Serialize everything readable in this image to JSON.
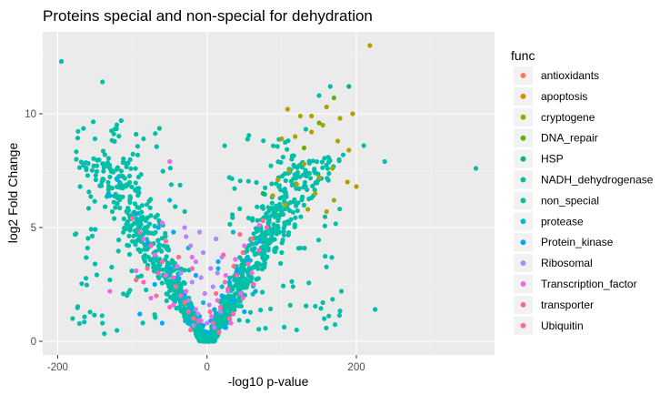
{
  "chart_data": {
    "type": "scatter",
    "title": "Proteins special and non-special for dehydration",
    "xlabel": "-log10 p-value",
    "ylabel": "log2 Fold Change",
    "xlim": [
      -220,
      385
    ],
    "ylim": [
      -0.6,
      13.6
    ],
    "x_ticks": [
      -200,
      0,
      200
    ],
    "y_ticks": [
      0,
      5,
      10
    ],
    "x_minor_ticks": [
      -100,
      100,
      300
    ],
    "y_minor_ticks": [
      2.5,
      7.5,
      12.5
    ],
    "grid": true,
    "background": "#ebebeb",
    "grid_major_color": "#ffffff",
    "legend_position": "right",
    "legend_title": "func",
    "series": [
      {
        "name": "antioxidants",
        "color": "#F8766D",
        "points": []
      },
      {
        "name": "apoptosis",
        "color": "#DB8E00",
        "points": []
      },
      {
        "name": "cryptogene",
        "color": "#AEA200",
        "points": [
          [
            218,
            13.0
          ],
          [
            108,
            10.2
          ],
          [
            125,
            9.9
          ],
          [
            140,
            9.9
          ],
          [
            160,
            10.3
          ],
          [
            178,
            9.8
          ],
          [
            195,
            10.0
          ],
          [
            100,
            8.9
          ],
          [
            118,
            9.0
          ],
          [
            140,
            9.2
          ],
          [
            155,
            9.5
          ],
          [
            175,
            8.8
          ],
          [
            190,
            8.4
          ],
          [
            110,
            7.5
          ],
          [
            130,
            7.8
          ],
          [
            150,
            7.2
          ],
          [
            168,
            7.6
          ],
          [
            188,
            7.0
          ],
          [
            200,
            6.8
          ],
          [
            95,
            7.1
          ],
          [
            120,
            6.9
          ],
          [
            145,
            6.5
          ],
          [
            170,
            6.2
          ],
          [
            88,
            6.4
          ],
          [
            105,
            6.0
          ],
          [
            135,
            5.8
          ],
          [
            160,
            5.7
          ]
        ]
      },
      {
        "name": "DNA_repair",
        "color": "#64B200",
        "points": [
          [
            170,
            10.7
          ],
          [
            150,
            9.6
          ],
          [
            130,
            8.5
          ]
        ]
      },
      {
        "name": "HSP",
        "color": "#00BD5C",
        "points": [
          [
            190,
            11.2
          ],
          [
            75,
            6.5
          ]
        ]
      },
      {
        "name": "NADH_dehydrogenase",
        "color": "#00C1A7",
        "points": []
      },
      {
        "name": "non_special",
        "color": "#00BFA8",
        "points": []
      },
      {
        "name": "protease",
        "color": "#00BADE",
        "points": [
          [
            -50,
            6.2
          ],
          [
            -25,
            4.1
          ],
          [
            15,
            3.2
          ],
          [
            35,
            4.8
          ],
          [
            -5,
            1.7
          ],
          [
            20,
            2.4
          ]
        ]
      },
      {
        "name": "Protein_kinase",
        "color": "#00A6FF",
        "points": [
          [
            -120,
            7.1
          ],
          [
            -95,
            5.6
          ],
          [
            -80,
            4.3
          ],
          [
            -65,
            5.0
          ],
          [
            -50,
            3.2
          ],
          [
            -40,
            2.8
          ],
          [
            -30,
            2.1
          ],
          [
            -20,
            1.5
          ],
          [
            -10,
            1.1
          ],
          [
            -5,
            0.7
          ],
          [
            5,
            0.9
          ],
          [
            10,
            1.4
          ],
          [
            20,
            2.0
          ],
          [
            30,
            2.6
          ],
          [
            40,
            3.1
          ],
          [
            55,
            3.6
          ],
          [
            70,
            4.4
          ],
          [
            -90,
            1.2
          ],
          [
            -60,
            0.8
          ],
          [
            -35,
            1.9
          ],
          [
            25,
            0.6
          ],
          [
            50,
            1.3
          ],
          [
            -70,
            2.5
          ],
          [
            -45,
            4.8
          ],
          [
            15,
            3.5
          ],
          [
            -15,
            2.9
          ],
          [
            0,
            0.4
          ],
          [
            -25,
            0.9
          ],
          [
            35,
            1.8
          ],
          [
            65,
            2.2
          ],
          [
            -130,
            6.4
          ]
        ]
      },
      {
        "name": "Ribosomal",
        "color": "#B385FF",
        "points": [
          [
            -30,
            5.0
          ],
          [
            -22,
            4.2
          ],
          [
            -15,
            3.5
          ],
          [
            -8,
            2.8
          ],
          [
            -3,
            2.1
          ],
          [
            3,
            1.6
          ],
          [
            8,
            2.4
          ],
          [
            14,
            3.0
          ],
          [
            20,
            3.7
          ],
          [
            -25,
            1.8
          ],
          [
            -12,
            1.2
          ],
          [
            0,
            0.8
          ],
          [
            10,
            0.6
          ],
          [
            18,
            1.3
          ],
          [
            -20,
            2.6
          ],
          [
            -5,
            3.9
          ],
          [
            5,
            3.2
          ],
          [
            -35,
            3.0
          ],
          [
            28,
            2.2
          ],
          [
            -18,
            0.7
          ],
          [
            12,
            4.5
          ],
          [
            -28,
            4.6
          ],
          [
            -10,
            4.8
          ]
        ]
      },
      {
        "name": "Transcription_factor",
        "color": "#EF67EB",
        "points": [
          [
            -50,
            7.9
          ],
          [
            -85,
            4.5
          ],
          [
            -70,
            3.8
          ],
          [
            -55,
            2.9
          ],
          [
            -40,
            3.3
          ],
          [
            -28,
            2.2
          ],
          [
            -15,
            1.4
          ],
          [
            -8,
            0.9
          ],
          [
            6,
            1.1
          ],
          [
            14,
            1.8
          ],
          [
            25,
            2.9
          ],
          [
            38,
            3.6
          ],
          [
            50,
            4.2
          ],
          [
            -60,
            5.2
          ],
          [
            -45,
            1.6
          ],
          [
            32,
            0.8
          ],
          [
            -130,
            2.2
          ],
          [
            -95,
            3.1
          ],
          [
            70,
            5.1
          ],
          [
            -75,
            1.9
          ],
          [
            45,
            2.1
          ],
          [
            -20,
            3.7
          ],
          [
            60,
            3.0
          ]
        ]
      },
      {
        "name": "transporter",
        "color": "#FF63B6",
        "points": [
          [
            -75,
            4.2
          ],
          [
            -60,
            3.5
          ],
          [
            -45,
            2.8
          ],
          [
            -35,
            2.0
          ],
          [
            -25,
            1.3
          ],
          [
            -12,
            0.9
          ],
          [
            8,
            0.8
          ],
          [
            18,
            1.5
          ],
          [
            28,
            2.3
          ],
          [
            40,
            2.9
          ],
          [
            55,
            3.4
          ],
          [
            70,
            4.0
          ],
          [
            -85,
            2.6
          ],
          [
            -50,
            1.5
          ],
          [
            35,
            1.2
          ],
          [
            -20,
            3.2
          ],
          [
            22,
            3.8
          ],
          [
            -65,
            3.0
          ],
          [
            48,
            1.9
          ],
          [
            -90,
            4.8
          ],
          [
            80,
            5.0
          ],
          [
            62,
            2.5
          ]
        ]
      },
      {
        "name": "Ubiquitin",
        "color": "#FF6C91",
        "points": [
          [
            -100,
            5.4
          ],
          [
            -80,
            3.2
          ],
          [
            -55,
            4.4
          ],
          [
            -42,
            2.4
          ],
          [
            -30,
            1.7
          ],
          [
            -18,
            1.0
          ],
          [
            4,
            1.3
          ],
          [
            12,
            2.1
          ],
          [
            24,
            2.6
          ],
          [
            36,
            3.3
          ],
          [
            48,
            3.9
          ],
          [
            60,
            4.5
          ],
          [
            75,
            5.3
          ],
          [
            -68,
            2.0
          ],
          [
            -38,
            3.7
          ],
          [
            30,
            1.0
          ],
          [
            -95,
            2.7
          ],
          [
            44,
            4.7
          ],
          [
            -22,
            0.5
          ],
          [
            16,
            0.4
          ]
        ]
      }
    ]
  }
}
